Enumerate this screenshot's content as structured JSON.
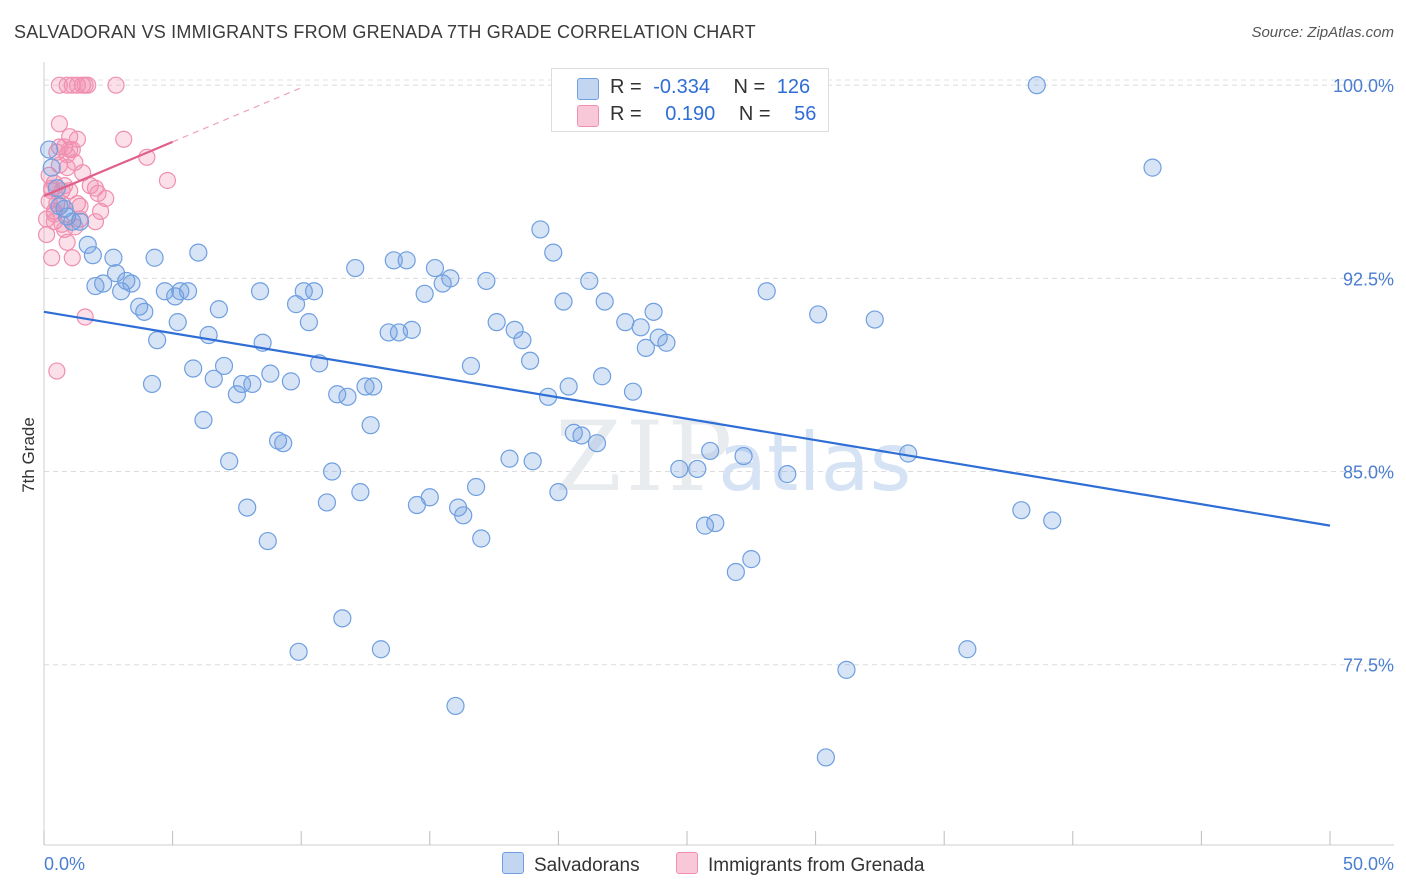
{
  "title": "SALVADORAN VS IMMIGRANTS FROM GRENADA 7TH GRADE CORRELATION CHART",
  "source": "Source: ZipAtlas.com",
  "watermark": {
    "zip": "ZIP",
    "atlas": "atlas"
  },
  "legend": {
    "r_label": "R =",
    "n_label": "N =",
    "series1": {
      "r": "-0.334",
      "n": "126"
    },
    "series2": {
      "r": "0.190",
      "n": "56"
    }
  },
  "bottom_legend": {
    "series1": "Salvadorans",
    "series2": "Immigrants from Grenada"
  },
  "chart_data": {
    "type": "scatter",
    "title": "SALVADORAN VS IMMIGRANTS FROM GRENADA 7TH GRADE CORRELATION CHART",
    "xlabel": "",
    "ylabel": "7th Grade",
    "xlim": [
      0,
      50
    ],
    "ylim": [
      70.5,
      100.9
    ],
    "x_tick_labels": [
      "0.0%",
      "50.0%"
    ],
    "y_ticks": [
      77.5,
      85.0,
      92.5,
      100.0
    ],
    "y_tick_labels": [
      "77.5%",
      "85.0%",
      "92.5%",
      "100.0%"
    ],
    "grid": true,
    "colors": {
      "series1": "#6f9fe0",
      "series1_line": "#2f6ed6",
      "series2": "#f08fb0",
      "series2_line": "#e0608a"
    },
    "series": [
      {
        "name": "Salvadorans",
        "r": -0.334,
        "n": 126,
        "trend": {
          "x0": 0.0,
          "y0": 91.2,
          "x1": 50.0,
          "y1": 82.9
        },
        "points": [
          [
            0.2,
            97.5
          ],
          [
            0.3,
            96.8
          ],
          [
            0.5,
            96.0
          ],
          [
            0.6,
            95.3
          ],
          [
            0.8,
            95.2
          ],
          [
            0.9,
            94.9
          ],
          [
            1.1,
            94.7
          ],
          [
            1.4,
            94.7
          ],
          [
            1.7,
            93.8
          ],
          [
            1.9,
            93.4
          ],
          [
            2.0,
            92.2
          ],
          [
            2.3,
            92.3
          ],
          [
            2.8,
            92.7
          ],
          [
            2.7,
            93.3
          ],
          [
            3.0,
            92.0
          ],
          [
            3.2,
            92.4
          ],
          [
            3.4,
            92.3
          ],
          [
            3.7,
            91.4
          ],
          [
            3.9,
            91.2
          ],
          [
            4.2,
            88.4
          ],
          [
            4.3,
            93.3
          ],
          [
            4.4,
            90.1
          ],
          [
            4.7,
            92.0
          ],
          [
            5.1,
            91.8
          ],
          [
            5.2,
            90.8
          ],
          [
            5.3,
            92.0
          ],
          [
            5.6,
            92.0
          ],
          [
            5.8,
            89.0
          ],
          [
            6.0,
            93.5
          ],
          [
            6.2,
            87.0
          ],
          [
            6.4,
            90.3
          ],
          [
            6.6,
            88.6
          ],
          [
            6.8,
            91.3
          ],
          [
            7.0,
            89.1
          ],
          [
            7.2,
            85.4
          ],
          [
            7.5,
            88.0
          ],
          [
            7.7,
            88.4
          ],
          [
            7.9,
            83.6
          ],
          [
            8.1,
            88.4
          ],
          [
            8.4,
            92.0
          ],
          [
            8.5,
            90.0
          ],
          [
            8.7,
            82.3
          ],
          [
            8.8,
            88.8
          ],
          [
            9.1,
            86.2
          ],
          [
            9.3,
            86.1
          ],
          [
            9.6,
            88.5
          ],
          [
            9.8,
            91.5
          ],
          [
            9.9,
            78.0
          ],
          [
            10.1,
            92.0
          ],
          [
            10.3,
            90.8
          ],
          [
            10.5,
            92.0
          ],
          [
            10.7,
            89.2
          ],
          [
            11.0,
            83.8
          ],
          [
            11.2,
            85.0
          ],
          [
            11.4,
            88.0
          ],
          [
            11.6,
            79.3
          ],
          [
            11.8,
            87.9
          ],
          [
            12.1,
            92.9
          ],
          [
            12.3,
            84.2
          ],
          [
            12.5,
            88.3
          ],
          [
            12.7,
            86.8
          ],
          [
            12.8,
            88.3
          ],
          [
            13.1,
            78.1
          ],
          [
            13.4,
            90.4
          ],
          [
            13.6,
            93.2
          ],
          [
            13.8,
            90.4
          ],
          [
            14.1,
            93.2
          ],
          [
            14.3,
            90.5
          ],
          [
            14.5,
            83.7
          ],
          [
            14.8,
            91.9
          ],
          [
            15.0,
            84.0
          ],
          [
            15.2,
            92.9
          ],
          [
            15.5,
            92.3
          ],
          [
            15.8,
            92.5
          ],
          [
            16.0,
            75.9
          ],
          [
            16.1,
            83.6
          ],
          [
            16.3,
            83.3
          ],
          [
            16.6,
            89.1
          ],
          [
            16.8,
            84.4
          ],
          [
            17.0,
            82.4
          ],
          [
            17.2,
            92.4
          ],
          [
            17.6,
            90.8
          ],
          [
            18.1,
            85.5
          ],
          [
            18.3,
            90.5
          ],
          [
            18.6,
            90.1
          ],
          [
            18.9,
            89.3
          ],
          [
            19.0,
            85.4
          ],
          [
            19.3,
            94.4
          ],
          [
            19.6,
            87.9
          ],
          [
            19.8,
            93.5
          ],
          [
            20.0,
            84.2
          ],
          [
            20.2,
            91.6
          ],
          [
            20.4,
            88.3
          ],
          [
            20.6,
            86.5
          ],
          [
            20.9,
            86.4
          ],
          [
            21.2,
            92.4
          ],
          [
            21.5,
            86.1
          ],
          [
            21.7,
            88.7
          ],
          [
            21.8,
            91.6
          ],
          [
            22.6,
            90.8
          ],
          [
            22.9,
            88.1
          ],
          [
            23.2,
            90.6
          ],
          [
            23.4,
            89.8
          ],
          [
            23.7,
            91.2
          ],
          [
            23.9,
            90.2
          ],
          [
            24.2,
            90.0
          ],
          [
            24.7,
            85.1
          ],
          [
            25.4,
            85.1
          ],
          [
            25.7,
            82.9
          ],
          [
            25.9,
            85.8
          ],
          [
            26.1,
            83.0
          ],
          [
            26.9,
            81.1
          ],
          [
            27.2,
            85.6
          ],
          [
            27.5,
            81.6
          ],
          [
            28.1,
            92.0
          ],
          [
            28.9,
            84.9
          ],
          [
            30.4,
            73.9
          ],
          [
            30.1,
            91.1
          ],
          [
            31.2,
            77.3
          ],
          [
            32.3,
            90.9
          ],
          [
            33.6,
            85.7
          ],
          [
            35.9,
            78.1
          ],
          [
            38.0,
            83.5
          ],
          [
            38.6,
            100.0
          ],
          [
            39.2,
            83.1
          ],
          [
            43.1,
            96.8
          ]
        ]
      },
      {
        "name": "Immigrants from Grenada",
        "r": 0.19,
        "n": 56,
        "trend": {
          "x0": 0.0,
          "y0": 95.7,
          "x1": 5.0,
          "y1": 97.8,
          "dash_x1": 10.0,
          "dash_y1": 99.9
        },
        "points": [
          [
            0.1,
            94.8
          ],
          [
            0.1,
            94.2
          ],
          [
            0.2,
            95.5
          ],
          [
            0.2,
            96.5
          ],
          [
            0.3,
            93.3
          ],
          [
            0.3,
            95.9
          ],
          [
            0.4,
            94.7
          ],
          [
            0.4,
            95.1
          ],
          [
            0.4,
            96.2
          ],
          [
            0.5,
            97.4
          ],
          [
            0.5,
            95.4
          ],
          [
            0.6,
            98.5
          ],
          [
            0.6,
            97.6
          ],
          [
            0.6,
            96.9
          ],
          [
            0.7,
            94.6
          ],
          [
            0.7,
            95.9
          ],
          [
            0.8,
            97.6
          ],
          [
            0.8,
            96.1
          ],
          [
            0.8,
            94.4
          ],
          [
            0.9,
            97.3
          ],
          [
            0.9,
            93.9
          ],
          [
            1.0,
            98.0
          ],
          [
            1.0,
            97.5
          ],
          [
            1.1,
            93.3
          ],
          [
            1.1,
            97.5
          ],
          [
            1.2,
            97.0
          ],
          [
            1.3,
            95.4
          ],
          [
            1.3,
            97.9
          ],
          [
            1.4,
            95.3
          ],
          [
            1.6,
            91.0
          ],
          [
            1.8,
            96.1
          ],
          [
            2.0,
            94.7
          ],
          [
            2.1,
            95.8
          ],
          [
            2.2,
            95.1
          ],
          [
            2.4,
            95.6
          ],
          [
            3.1,
            97.9
          ],
          [
            4.0,
            97.2
          ],
          [
            4.8,
            96.3
          ],
          [
            0.5,
            88.9
          ],
          [
            0.6,
            100.0
          ],
          [
            0.9,
            100.0
          ],
          [
            1.1,
            100.0
          ],
          [
            1.3,
            100.0
          ],
          [
            1.5,
            100.0
          ],
          [
            1.6,
            100.0
          ],
          [
            1.7,
            100.0
          ],
          [
            2.8,
            100.0
          ],
          [
            0.3,
            96.0
          ],
          [
            0.4,
            95.0
          ],
          [
            0.7,
            95.4
          ],
          [
            0.9,
            96.8
          ],
          [
            1.0,
            95.9
          ],
          [
            1.2,
            94.5
          ],
          [
            1.4,
            94.8
          ],
          [
            1.5,
            96.6
          ],
          [
            2.0,
            96.0
          ]
        ]
      }
    ]
  }
}
